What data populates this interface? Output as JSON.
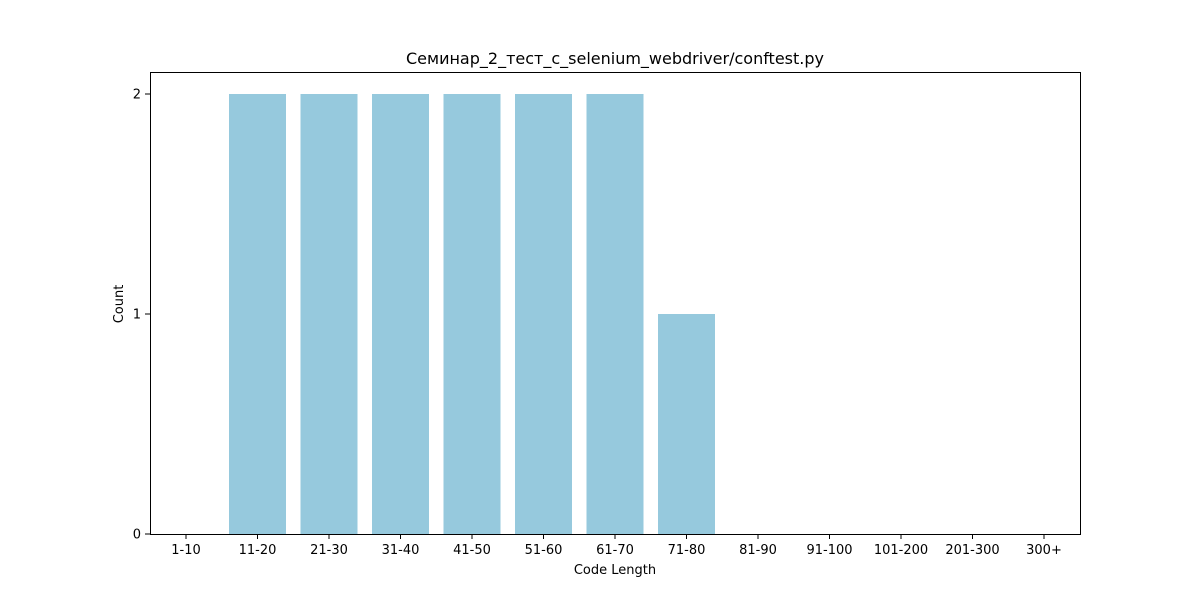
{
  "chart_data": {
    "type": "bar",
    "title": "Семинар_2_тест_с_selenium_webdriver/conftest.py",
    "xlabel": "Code Length",
    "ylabel": "Count",
    "categories": [
      "1-10",
      "11-20",
      "21-30",
      "31-40",
      "41-50",
      "51-60",
      "61-70",
      "71-80",
      "81-90",
      "91-100",
      "101-200",
      "201-300",
      "300+"
    ],
    "values": [
      0,
      2,
      2,
      2,
      2,
      2,
      2,
      1,
      0,
      0,
      0,
      0,
      0
    ],
    "ylim": [
      0,
      2.1
    ],
    "yticks": [
      0,
      1,
      2
    ],
    "bar_color": "#96c9dd",
    "grid": false,
    "legend": "none"
  }
}
